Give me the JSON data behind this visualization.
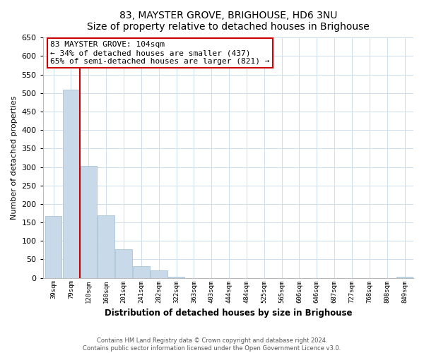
{
  "title": "83, MAYSTER GROVE, BRIGHOUSE, HD6 3NU",
  "subtitle": "Size of property relative to detached houses in Brighouse",
  "xlabel": "Distribution of detached houses by size in Brighouse",
  "ylabel": "Number of detached properties",
  "bar_labels": [
    "39sqm",
    "79sqm",
    "120sqm",
    "160sqm",
    "201sqm",
    "241sqm",
    "282sqm",
    "322sqm",
    "363sqm",
    "403sqm",
    "444sqm",
    "484sqm",
    "525sqm",
    "565sqm",
    "606sqm",
    "646sqm",
    "687sqm",
    "727sqm",
    "768sqm",
    "808sqm",
    "849sqm"
  ],
  "bar_values": [
    168,
    510,
    303,
    170,
    78,
    32,
    20,
    3,
    0,
    0,
    0,
    0,
    0,
    0,
    0,
    0,
    0,
    0,
    0,
    0,
    3
  ],
  "bar_color": "#c8daea",
  "bar_edge_color": "#a8c4d8",
  "ylim": [
    0,
    650
  ],
  "yticks": [
    0,
    50,
    100,
    150,
    200,
    250,
    300,
    350,
    400,
    450,
    500,
    550,
    600,
    650
  ],
  "marker_color": "#cc0000",
  "annotation_title": "83 MAYSTER GROVE: 104sqm",
  "annotation_line1": "← 34% of detached houses are smaller (437)",
  "annotation_line2": "65% of semi-detached houses are larger (821) →",
  "annotation_box_color": "#ffffff",
  "annotation_box_edge": "#cc0000",
  "footer_line1": "Contains HM Land Registry data © Crown copyright and database right 2024.",
  "footer_line2": "Contains public sector information licensed under the Open Government Licence v3.0.",
  "bg_color": "#ffffff",
  "grid_color": "#ccddee"
}
